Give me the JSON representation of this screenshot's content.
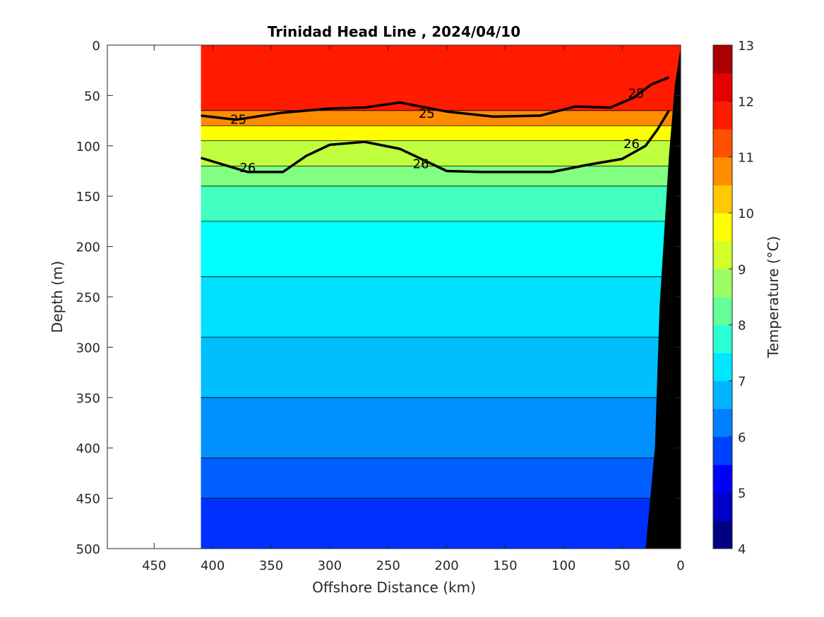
{
  "chart_data": {
    "type": "heatmap",
    "title": "Trinidad Head Line , 2024/04/10",
    "xlabel": "Offshore Distance (km)",
    "ylabel": "Depth (m)",
    "colorbar_label": "Temperature (°C)",
    "xlim": [
      490,
      0
    ],
    "ylim": [
      0,
      500
    ],
    "x_ticks": [
      450,
      400,
      350,
      300,
      250,
      200,
      150,
      100,
      50,
      0
    ],
    "y_ticks": [
      0,
      50,
      100,
      150,
      200,
      250,
      300,
      350,
      400,
      450,
      500
    ],
    "colorbar_ticks": [
      4,
      5,
      6,
      7,
      8,
      9,
      10,
      11,
      12,
      13
    ],
    "colorbar_range": [
      4,
      13
    ],
    "colormap": [
      "#000080",
      "#0000c8",
      "#0000ff",
      "#0040ff",
      "#0080ff",
      "#00b4ff",
      "#00e6ff",
      "#2bffd4",
      "#64ff9b",
      "#9bff64",
      "#d4ff2b",
      "#ffff00",
      "#ffc800",
      "#ff8c00",
      "#ff5000",
      "#ff1a00",
      "#e60000",
      "#aa0000"
    ],
    "data_extent_km": [
      410,
      0
    ],
    "temperature_layers": [
      {
        "label": "11.5-12",
        "top": 0,
        "bottom": 65,
        "color": "#ff1a00"
      },
      {
        "label": "10-11",
        "top": 65,
        "bottom": 80,
        "color": "#ff8c00"
      },
      {
        "label": "9.5-10",
        "top": 80,
        "bottom": 95,
        "color": "#ffff00"
      },
      {
        "label": "9-9.5",
        "top": 95,
        "bottom": 120,
        "color": "#bfff3f"
      },
      {
        "label": "8.5-9",
        "top": 120,
        "bottom": 140,
        "color": "#80ff80"
      },
      {
        "label": "8-8.5",
        "top": 140,
        "bottom": 175,
        "color": "#40ffbf"
      },
      {
        "label": "7.5-8",
        "top": 175,
        "bottom": 230,
        "color": "#00ffff"
      },
      {
        "label": "7-7.5",
        "top": 230,
        "bottom": 290,
        "color": "#00e0ff"
      },
      {
        "label": "6.5-7",
        "top": 290,
        "bottom": 350,
        "color": "#00bfff"
      },
      {
        "label": "6-6.5",
        "top": 350,
        "bottom": 410,
        "color": "#0090ff"
      },
      {
        "label": "5.5-6",
        "top": 410,
        "bottom": 450,
        "color": "#0060ff"
      },
      {
        "label": "5-5.5",
        "top": 450,
        "bottom": 500,
        "color": "#0030ff"
      }
    ],
    "density_contours": [
      {
        "label": "25",
        "points": [
          [
            410,
            70
          ],
          [
            380,
            74
          ],
          [
            340,
            67
          ],
          [
            300,
            63
          ],
          [
            270,
            62
          ],
          [
            240,
            57
          ],
          [
            200,
            66
          ],
          [
            160,
            71
          ],
          [
            120,
            70
          ],
          [
            90,
            61
          ],
          [
            60,
            62
          ],
          [
            40,
            52
          ],
          [
            25,
            39
          ],
          [
            10,
            32
          ]
        ]
      },
      {
        "label": "26",
        "points": [
          [
            410,
            112
          ],
          [
            370,
            126
          ],
          [
            340,
            126
          ],
          [
            320,
            110
          ],
          [
            300,
            99
          ],
          [
            270,
            96
          ],
          [
            240,
            103
          ],
          [
            200,
            125
          ],
          [
            170,
            126
          ],
          [
            140,
            126
          ],
          [
            110,
            126
          ],
          [
            80,
            119
          ],
          [
            50,
            113
          ],
          [
            30,
            100
          ],
          [
            20,
            84
          ],
          [
            10,
            65
          ]
        ]
      }
    ],
    "contour_labels": [
      {
        "text": "25",
        "x": 378,
        "y": 74
      },
      {
        "text": "25",
        "x": 217,
        "y": 68
      },
      {
        "text": "25",
        "x": 38,
        "y": 48
      },
      {
        "text": "26",
        "x": 370,
        "y": 122
      },
      {
        "text": "26",
        "x": 222,
        "y": 118
      },
      {
        "text": "26",
        "x": 42,
        "y": 98
      }
    ]
  }
}
